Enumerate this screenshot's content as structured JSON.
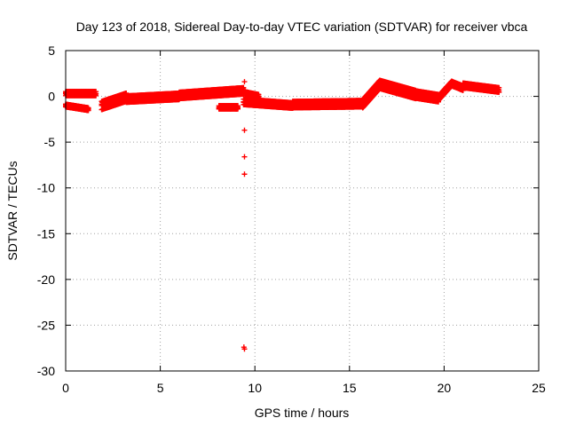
{
  "chart_data": {
    "type": "scatter",
    "title": "Day 123 of 2018, Sidereal Day-to-day VTEC variation (SDTVAR) for receiver vbca",
    "xlabel": "GPS time / hours",
    "ylabel": "SDTVAR / TECUs",
    "xlim": [
      0,
      25
    ],
    "ylim": [
      -30,
      5
    ],
    "xticks": [
      0,
      5,
      10,
      15,
      20,
      25
    ],
    "yticks": [
      5,
      0,
      -5,
      -10,
      -15,
      -20,
      -25,
      -30
    ],
    "grid": true,
    "marker": "+",
    "series": [
      {
        "name": "SDTVAR",
        "color": "#ff0000",
        "bands": [
          {
            "x": [
              0.0,
              1.6
            ],
            "y": [
              0.3,
              0.3
            ],
            "spread": 0.45
          },
          {
            "x": [
              0.0,
              1.2
            ],
            "y": [
              -1.0,
              -1.4
            ],
            "spread": 0.3
          },
          {
            "x": [
              1.9,
              3.2
            ],
            "y": [
              -1.0,
              -0.1
            ],
            "spread": 0.9
          },
          {
            "x": [
              3.2,
              6.0
            ],
            "y": [
              -0.3,
              0.0
            ],
            "spread": 0.7
          },
          {
            "x": [
              6.0,
              9.4
            ],
            "y": [
              0.1,
              0.6
            ],
            "spread": 0.7
          },
          {
            "x": [
              8.1,
              9.1
            ],
            "y": [
              -1.2,
              -1.2
            ],
            "spread": 0.35
          },
          {
            "x": [
              9.4,
              12.0
            ],
            "y": [
              -0.6,
              -1.0
            ],
            "spread": 0.6
          },
          {
            "x": [
              9.5,
              10.2
            ],
            "y": [
              0.3,
              0.0
            ],
            "spread": 0.4
          },
          {
            "x": [
              12.0,
              15.7
            ],
            "y": [
              -0.9,
              -0.8
            ],
            "spread": 0.7
          },
          {
            "x": [
              15.7,
              16.6
            ],
            "y": [
              -0.8,
              1.3
            ],
            "spread": 0.9
          },
          {
            "x": [
              16.6,
              18.5
            ],
            "y": [
              1.3,
              0.2
            ],
            "spread": 0.9
          },
          {
            "x": [
              18.5,
              19.7
            ],
            "y": [
              0.2,
              -0.2
            ],
            "spread": 0.8
          },
          {
            "x": [
              19.7,
              20.4
            ],
            "y": [
              -0.2,
              1.4
            ],
            "spread": 0.5
          },
          {
            "x": [
              20.4,
              21.0
            ],
            "y": [
              1.4,
              0.9
            ],
            "spread": 0.5
          },
          {
            "x": [
              21.0,
              22.9
            ],
            "y": [
              1.2,
              0.7
            ],
            "spread": 0.5
          }
        ],
        "points": [
          {
            "x": 9.45,
            "y": 1.6
          },
          {
            "x": 9.45,
            "y": -3.7
          },
          {
            "x": 9.45,
            "y": -6.6
          },
          {
            "x": 9.45,
            "y": -8.5
          },
          {
            "x": 9.42,
            "y": -27.4
          },
          {
            "x": 9.45,
            "y": -27.6
          }
        ]
      }
    ]
  }
}
